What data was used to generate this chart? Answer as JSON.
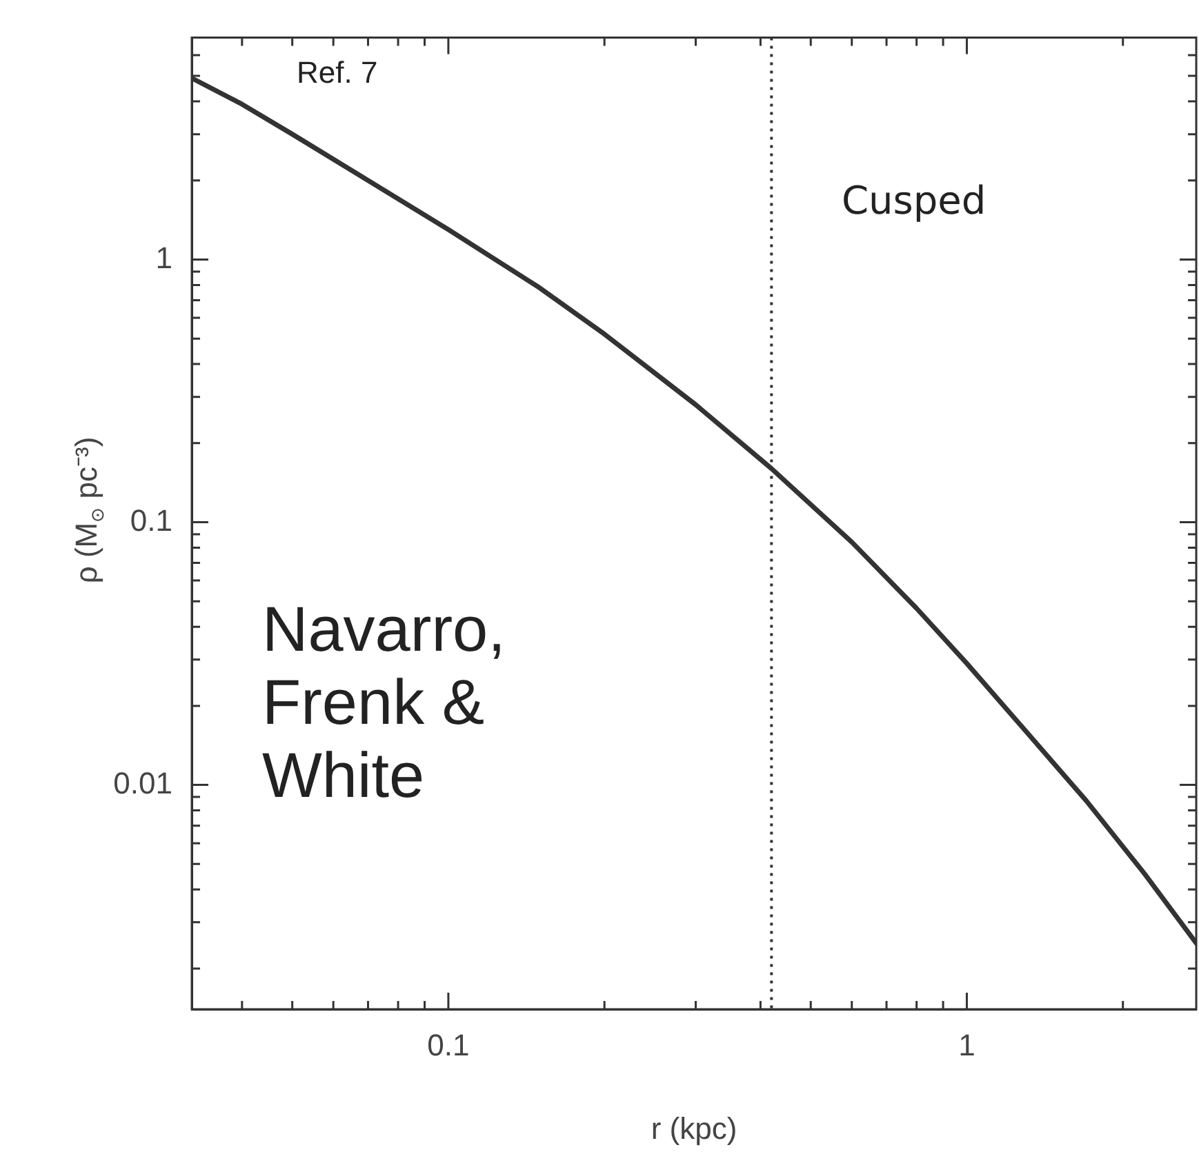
{
  "chart_data": {
    "type": "line",
    "xlabel": "r (kpc)",
    "ylabel": "ρ (M$_{⊙}$ pc⁻³)",
    "log": "xy",
    "grid": false,
    "legend": false,
    "marker": "none",
    "x": [
      0.032,
      0.04,
      0.05,
      0.07,
      0.1,
      0.15,
      0.2,
      0.3,
      0.42,
      0.6,
      0.8,
      1,
      1.3,
      1.7,
      2.2,
      2.77
    ],
    "series": [
      {
        "color": "#333333",
        "line_style": "solid",
        "values": [
          4.9,
          3.9,
          3.0,
          2.0,
          1.3,
          0.78,
          0.52,
          0.28,
          0.16,
          0.084,
          0.047,
          0.029,
          0.016,
          0.0087,
          0.0046,
          0.0025
        ]
      }
    ],
    "xlim": [
      0.032,
      2.77
    ],
    "xticks": [
      {
        "value": 0.04,
        "label": null
      },
      {
        "value": 0.05,
        "label": null
      },
      {
        "value": 0.06,
        "label": null
      },
      {
        "value": 0.07,
        "label": null
      },
      {
        "value": 0.08,
        "label": null
      },
      {
        "value": 0.09,
        "label": null
      },
      0.1,
      {
        "value": 0.2,
        "label": null
      },
      {
        "value": 0.3,
        "label": null
      },
      {
        "value": 0.4,
        "label": null
      },
      {
        "value": 0.5,
        "label": null
      },
      {
        "value": 0.6,
        "label": null
      },
      {
        "value": 0.7,
        "label": null
      },
      {
        "value": 0.8,
        "label": null
      },
      {
        "value": 0.9,
        "label": null
      },
      1,
      {
        "value": 2,
        "label": null
      }
    ],
    "ylim": [
      0.0014,
      7
    ],
    "yticks": [
      {
        "value": 0.002,
        "label": null
      },
      {
        "value": 0.003,
        "label": null
      },
      {
        "value": 0.004,
        "label": null
      },
      {
        "value": 0.005,
        "label": null
      },
      {
        "value": 0.006,
        "label": null
      },
      {
        "value": 0.007,
        "label": null
      },
      {
        "value": 0.008,
        "label": null
      },
      {
        "value": 0.009,
        "label": null
      },
      0.01,
      {
        "value": 0.02,
        "label": null
      },
      {
        "value": 0.03,
        "label": null
      },
      {
        "value": 0.04,
        "label": null
      },
      {
        "value": 0.05,
        "label": null
      },
      {
        "value": 0.06,
        "label": null
      },
      {
        "value": 0.07,
        "label": null
      },
      {
        "value": 0.08,
        "label": null
      },
      {
        "value": 0.09,
        "label": null
      },
      0.1,
      {
        "value": 0.2,
        "label": null
      },
      {
        "value": 0.3,
        "label": null
      },
      {
        "value": 0.4,
        "label": null
      },
      {
        "value": 0.5,
        "label": null
      },
      {
        "value": 0.6,
        "label": null
      },
      {
        "value": 0.7,
        "label": null
      },
      {
        "value": 0.8,
        "label": null
      },
      {
        "value": 0.9,
        "label": null
      },
      1,
      {
        "value": 2,
        "label": null
      },
      {
        "value": 3,
        "label": null
      },
      {
        "value": 4,
        "label": null
      },
      {
        "value": 5,
        "label": null
      },
      {
        "value": 6,
        "label": null
      }
    ],
    "ref_lines": [
      {
        "axis": "x",
        "value": 0.42,
        "color": "#333333",
        "line_style": "dotted"
      }
    ],
    "annotations": [
      "Ref. 7",
      "Cusped",
      "Navarro,\nFrenk &\nWhite"
    ]
  }
}
